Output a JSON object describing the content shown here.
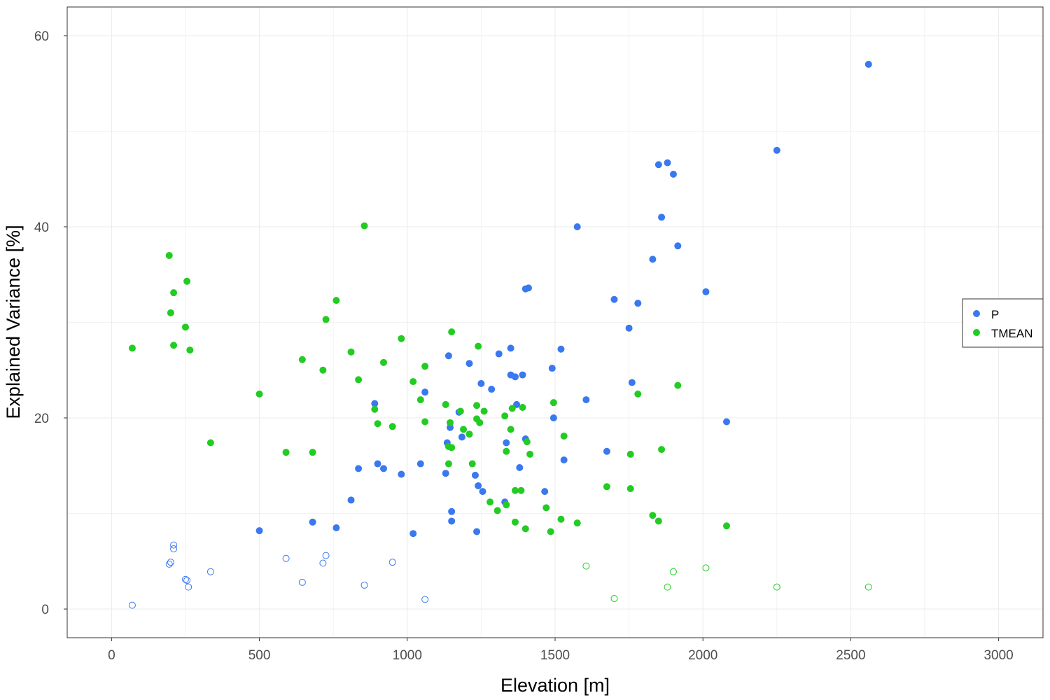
{
  "chart_data": {
    "type": "scatter",
    "xlabel": "Elevation [m]",
    "ylabel": "Explained Variance [%]",
    "xlim": [
      -150,
      3150
    ],
    "ylim": [
      -3,
      63
    ],
    "x_ticks": [
      0,
      500,
      1000,
      1500,
      2000,
      2500,
      3000
    ],
    "y_ticks": [
      0,
      20,
      40,
      60
    ],
    "grid": true,
    "legend_position": "right",
    "legend": [
      {
        "label": "P",
        "color": "#3a78f0"
      },
      {
        "label": "TMEAN",
        "color": "#22cc22"
      }
    ],
    "series": [
      {
        "name": "P",
        "color": "#3a78f0",
        "filled": [
          [
            2560,
            57
          ],
          [
            2250,
            48
          ],
          [
            1850,
            46.5
          ],
          [
            1880,
            46.7
          ],
          [
            1900,
            45.5
          ],
          [
            1860,
            41
          ],
          [
            1575,
            40
          ],
          [
            1915,
            38
          ],
          [
            1830,
            36.6
          ],
          [
            1400,
            33.5
          ],
          [
            1410,
            33.6
          ],
          [
            2010,
            33.2
          ],
          [
            1700,
            32.4
          ],
          [
            1780,
            32
          ],
          [
            1750,
            29.4
          ],
          [
            1350,
            27.3
          ],
          [
            1520,
            27.2
          ],
          [
            1310,
            26.7
          ],
          [
            1140,
            26.5
          ],
          [
            1210,
            25.7
          ],
          [
            1490,
            25.2
          ],
          [
            1350,
            24.5
          ],
          [
            1390,
            24.5
          ],
          [
            1365,
            24.3
          ],
          [
            1250,
            23.6
          ],
          [
            1760,
            23.7
          ],
          [
            1285,
            23
          ],
          [
            1060,
            22.7
          ],
          [
            1605,
            21.9
          ],
          [
            890,
            21.5
          ],
          [
            1370,
            21.4
          ],
          [
            1175,
            20.6
          ],
          [
            1495,
            20
          ],
          [
            2080,
            19.6
          ],
          [
            1145,
            19
          ],
          [
            1185,
            18
          ],
          [
            1400,
            17.8
          ],
          [
            1135,
            17.4
          ],
          [
            1335,
            17.4
          ],
          [
            1675,
            16.5
          ],
          [
            1530,
            15.6
          ],
          [
            900,
            15.2
          ],
          [
            1045,
            15.2
          ],
          [
            920,
            14.7
          ],
          [
            1380,
            14.8
          ],
          [
            835,
            14.7
          ],
          [
            980,
            14.1
          ],
          [
            1130,
            14.2
          ],
          [
            1230,
            14
          ],
          [
            1240,
            12.9
          ],
          [
            1255,
            12.3
          ],
          [
            1465,
            12.3
          ],
          [
            810,
            11.4
          ],
          [
            1330,
            11.2
          ],
          [
            1150,
            10.2
          ],
          [
            1150,
            9.2
          ],
          [
            680,
            9.1
          ],
          [
            760,
            8.5
          ],
          [
            500,
            8.2
          ],
          [
            1235,
            8.1
          ],
          [
            1020,
            7.9
          ]
        ],
        "hollow": [
          [
            210,
            6.7
          ],
          [
            210,
            6.3
          ],
          [
            200,
            4.9
          ],
          [
            195,
            4.7
          ],
          [
            725,
            5.6
          ],
          [
            590,
            5.3
          ],
          [
            715,
            4.8
          ],
          [
            950,
            4.9
          ],
          [
            335,
            3.9
          ],
          [
            250,
            3.1
          ],
          [
            255,
            3
          ],
          [
            260,
            2.3
          ],
          [
            645,
            2.8
          ],
          [
            855,
            2.5
          ],
          [
            1060,
            1
          ],
          [
            70,
            0.4
          ]
        ]
      },
      {
        "name": "TMEAN",
        "color": "#22cc22",
        "filled": [
          [
            855,
            40.1
          ],
          [
            195,
            37
          ],
          [
            210,
            33.1
          ],
          [
            255,
            34.3
          ],
          [
            760,
            32.3
          ],
          [
            200,
            31
          ],
          [
            725,
            30.3
          ],
          [
            250,
            29.5
          ],
          [
            1150,
            29
          ],
          [
            980,
            28.3
          ],
          [
            70,
            27.3
          ],
          [
            210,
            27.6
          ],
          [
            265,
            27.1
          ],
          [
            810,
            26.9
          ],
          [
            1240,
            27.5
          ],
          [
            645,
            26.1
          ],
          [
            920,
            25.8
          ],
          [
            1060,
            25.4
          ],
          [
            715,
            25
          ],
          [
            835,
            24
          ],
          [
            1020,
            23.8
          ],
          [
            1915,
            23.4
          ],
          [
            500,
            22.5
          ],
          [
            1780,
            22.5
          ],
          [
            1045,
            21.9
          ],
          [
            1495,
            21.6
          ],
          [
            1130,
            21.4
          ],
          [
            1235,
            21.3
          ],
          [
            1390,
            21.1
          ],
          [
            1355,
            21
          ],
          [
            890,
            20.9
          ],
          [
            1260,
            20.7
          ],
          [
            1180,
            20.7
          ],
          [
            1330,
            20.2
          ],
          [
            1235,
            19.9
          ],
          [
            1245,
            19.5
          ],
          [
            1060,
            19.6
          ],
          [
            900,
            19.4
          ],
          [
            1145,
            19.5
          ],
          [
            950,
            19.1
          ],
          [
            1190,
            18.8
          ],
          [
            1350,
            18.8
          ],
          [
            1210,
            18.3
          ],
          [
            1530,
            18.1
          ],
          [
            1405,
            17.5
          ],
          [
            335,
            17.4
          ],
          [
            1140,
            17
          ],
          [
            1150,
            16.9
          ],
          [
            1860,
            16.7
          ],
          [
            1335,
            16.5
          ],
          [
            590,
            16.4
          ],
          [
            680,
            16.4
          ],
          [
            1415,
            16.2
          ],
          [
            1755,
            16.2
          ],
          [
            1140,
            15.2
          ],
          [
            1220,
            15.2
          ],
          [
            1675,
            12.8
          ],
          [
            1755,
            12.6
          ],
          [
            1365,
            12.4
          ],
          [
            1385,
            12.4
          ],
          [
            1280,
            11.2
          ],
          [
            1335,
            10.9
          ],
          [
            1470,
            10.6
          ],
          [
            1305,
            10.3
          ],
          [
            1830,
            9.8
          ],
          [
            1520,
            9.4
          ],
          [
            1850,
            9.2
          ],
          [
            1365,
            9.1
          ],
          [
            1575,
            9
          ],
          [
            2080,
            8.7
          ],
          [
            1400,
            8.4
          ],
          [
            1485,
            8.1
          ]
        ],
        "hollow": [
          [
            1605,
            4.5
          ],
          [
            2010,
            4.3
          ],
          [
            1900,
            3.9
          ],
          [
            2250,
            2.3
          ],
          [
            2560,
            2.3
          ],
          [
            1880,
            2.3
          ],
          [
            1700,
            1.1
          ]
        ]
      }
    ]
  }
}
